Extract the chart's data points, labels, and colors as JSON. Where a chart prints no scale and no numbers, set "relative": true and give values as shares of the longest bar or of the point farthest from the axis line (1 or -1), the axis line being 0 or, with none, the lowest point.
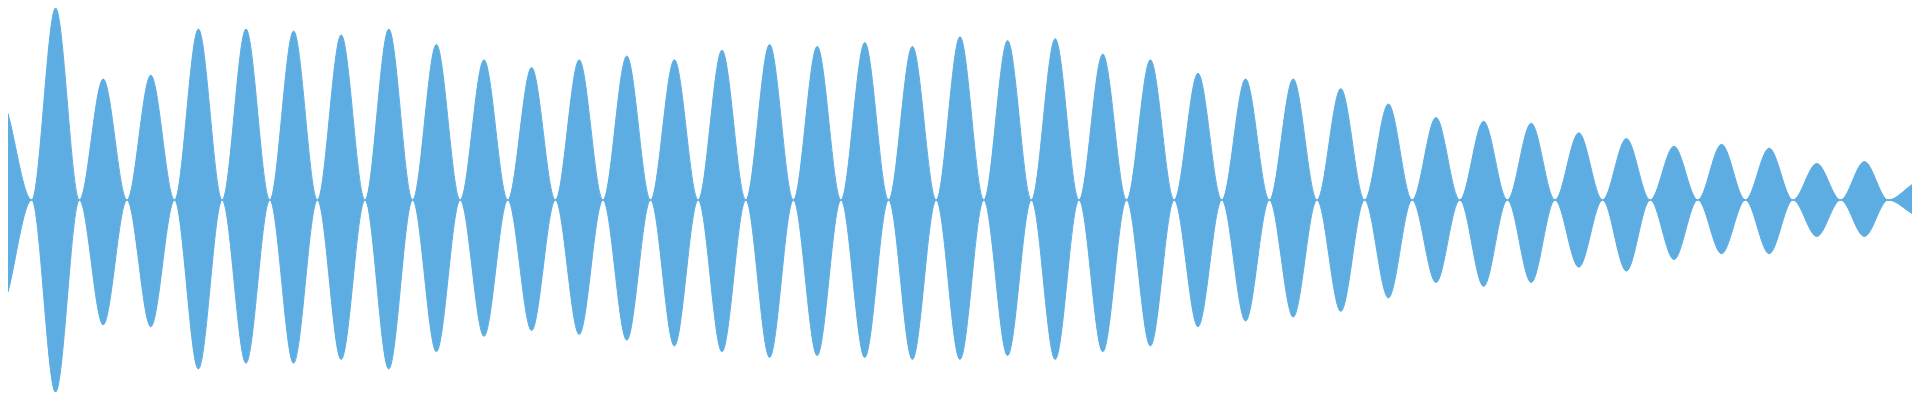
{
  "chart_data": {
    "type": "area",
    "relative": true,
    "ref_lines": [
      {
        "axis": "y",
        "value": 0,
        "color": "#5dade2"
      }
    ],
    "categories": [
      null,
      null,
      null,
      null,
      null,
      null,
      null,
      null,
      null,
      null,
      null,
      null,
      null,
      null,
      null,
      null,
      null,
      null,
      null,
      null,
      null,
      null,
      null,
      null,
      null,
      null,
      null,
      null,
      null,
      null,
      null,
      null,
      null,
      null,
      null,
      null,
      null,
      null,
      null,
      null,
      null,
      null,
      null,
      null,
      null,
      null,
      null,
      null,
      null,
      null,
      null,
      null,
      null,
      null,
      null,
      null,
      null,
      null,
      null,
      null,
      null,
      null,
      null,
      null,
      null,
      null,
      null,
      null,
      null,
      null,
      null,
      null,
      null,
      null,
      null,
      null,
      null,
      null,
      null,
      null,
      null
    ],
    "series": [
      {
        "color": "#5dade2",
        "values": [
          0.45,
          0,
          1.0,
          0,
          0.63,
          0,
          0.65,
          0,
          0.89,
          0,
          0.89,
          0,
          0.88,
          0,
          0.86,
          0,
          0.89,
          0,
          0.81,
          0,
          0.73,
          0,
          0.69,
          0,
          0.73,
          0,
          0.75,
          0,
          0.73,
          0,
          0.78,
          0,
          0.81,
          0,
          0.8,
          0,
          0.82,
          0,
          0.8,
          0,
          0.85,
          0,
          0.83,
          0,
          0.84,
          0,
          0.76,
          0,
          0.73,
          0,
          0.66,
          0,
          0.63,
          0,
          0.63,
          0,
          0.58,
          0,
          0.5,
          0,
          0.43,
          0,
          0.41,
          0,
          0.4,
          0,
          0.35,
          0,
          0.32,
          0,
          0.28,
          0,
          0.29,
          0,
          0.27,
          0,
          0.19,
          0,
          0.2,
          0,
          0.08
        ]
      },
      {
        "color": "#5dade2",
        "values": [
          -0.48,
          0,
          -1.0,
          0,
          -0.65,
          0,
          -0.66,
          0,
          -0.88,
          0,
          -0.85,
          0,
          -0.85,
          0,
          -0.83,
          0,
          -0.88,
          0,
          -0.79,
          0,
          -0.71,
          0,
          -0.68,
          0,
          -0.7,
          0,
          -0.73,
          0,
          -0.76,
          0,
          -0.79,
          0,
          -0.82,
          0,
          -0.81,
          0,
          -0.82,
          0,
          -0.83,
          0,
          -0.83,
          0,
          -0.81,
          0,
          -0.83,
          0,
          -0.79,
          0,
          -0.76,
          0,
          -0.66,
          0,
          -0.63,
          0,
          -0.61,
          0,
          -0.58,
          0,
          -0.51,
          0,
          -0.43,
          0,
          -0.45,
          0,
          -0.43,
          0,
          -0.35,
          0,
          -0.37,
          0,
          -0.31,
          0,
          -0.28,
          0,
          -0.28,
          0,
          -0.19,
          0,
          -0.19,
          0,
          -0.07
        ]
      }
    ]
  }
}
